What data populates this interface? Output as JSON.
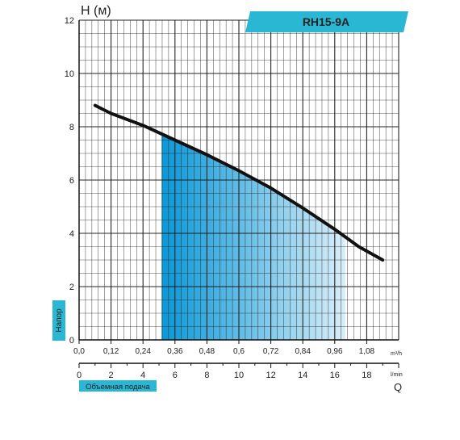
{
  "chart_data": {
    "type": "line",
    "title": "RH15-9A",
    "y_axis_label": "H (м)",
    "x_axis_unit_top": "m³/h",
    "x_axis_unit_bottom": "l/min",
    "x_axis_letter": "Q",
    "side_label": "Напор",
    "bottom_badge": "Объемная подача",
    "ylim": [
      0,
      12
    ],
    "y_ticks": [
      "0",
      "2",
      "4",
      "6",
      "8",
      "10",
      "12"
    ],
    "xlim": [
      0,
      1.2
    ],
    "x_ticks": [
      "0,0",
      "0,12",
      "0,24",
      "0,36",
      "0,48",
      "0,6",
      "0,72",
      "0,84",
      "0,96",
      "1,08"
    ],
    "x2lim": [
      0,
      20
    ],
    "x2_ticks": [
      "0",
      "2",
      "4",
      "6",
      "8",
      "10",
      "12",
      "14",
      "16",
      "18"
    ],
    "grid": true,
    "series": [
      {
        "x": [
          0.06,
          0.12,
          0.24,
          0.36,
          0.48,
          0.6,
          0.72,
          0.84,
          0.96,
          1.05,
          1.14
        ],
        "y": [
          8.8,
          8.5,
          8.05,
          7.5,
          6.95,
          6.35,
          5.7,
          4.95,
          4.15,
          3.5,
          3.0
        ]
      }
    ],
    "working_range": {
      "x_min": 0.31,
      "x_max": 1.0
    },
    "colors": {
      "curve": "#111111",
      "accent": "#2ab7d4",
      "fill_dark": "#0b97d6",
      "fill_light": "#d9eef9",
      "grid": "#1a1a1a"
    }
  }
}
